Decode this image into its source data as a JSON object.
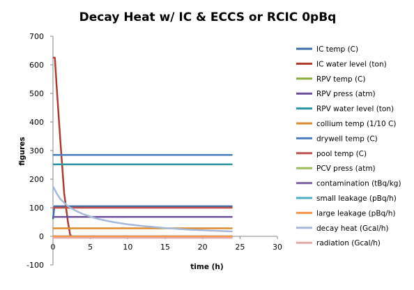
{
  "chart_data": {
    "type": "line",
    "title": "Decay Heat w/ IC & ECCS or RCIC   0pBq",
    "xlabel": "time (h)",
    "ylabel": "figures",
    "xlim": [
      0,
      30
    ],
    "ylim": [
      -100,
      700
    ],
    "xticks": [
      0,
      5,
      10,
      15,
      20,
      25,
      30
    ],
    "yticks": [
      -100,
      0,
      100,
      200,
      300,
      400,
      500,
      600,
      700
    ],
    "grid": false,
    "legend_position": "right",
    "series": [
      {
        "name": "IC temp (C)",
        "color": "#3a6ea5",
        "x": [
          0,
          0.2,
          24
        ],
        "y": [
          60,
          105,
          105
        ]
      },
      {
        "name": "IC water level (ton)",
        "color": "#b03a2e",
        "x": [
          0,
          0.25,
          0.5,
          1.0,
          1.5,
          2.0,
          2.3,
          2.5
        ],
        "y": [
          625,
          625,
          520,
          330,
          150,
          50,
          5,
          0
        ]
      },
      {
        "name": "RPV temp (C)",
        "color": "#8bac3a",
        "x": [
          0,
          24
        ],
        "y": [
          0,
          0
        ]
      },
      {
        "name": "RPV press (atm)",
        "color": "#6b4f99",
        "x": [
          0,
          24
        ],
        "y": [
          68,
          68
        ]
      },
      {
        "name": "RPV water level (ton)",
        "color": "#2a97a3",
        "x": [
          0,
          24
        ],
        "y": [
          252,
          252
        ]
      },
      {
        "name": "collium temp (1/10 C)",
        "color": "#e08a2e",
        "x": [
          0,
          24
        ],
        "y": [
          28,
          28
        ]
      },
      {
        "name": "drywell temp (C)",
        "color": "#4a7ebf",
        "x": [
          0,
          24
        ],
        "y": [
          285,
          285
        ]
      },
      {
        "name": "pool temp (C)",
        "color": "#c0504d",
        "x": [
          0,
          24
        ],
        "y": [
          100,
          100
        ]
      },
      {
        "name": "PCV press (atm)",
        "color": "#9bbb59",
        "x": [
          0,
          24
        ],
        "y": [
          -2,
          -2
        ]
      },
      {
        "name": "contamination (tBq/kg)",
        "color": "#7e61a8",
        "x": [
          0,
          24
        ],
        "y": [
          0,
          0
        ]
      },
      {
        "name": "small leakage (pBq/h)",
        "color": "#4bacc6",
        "x": [
          0,
          24
        ],
        "y": [
          0,
          0
        ]
      },
      {
        "name": "large leakage (pBq/h)",
        "color": "#f79646",
        "x": [
          0,
          24
        ],
        "y": [
          0,
          0
        ]
      },
      {
        "name": "decay heat (Gcal/h)",
        "color": "#a5b8d8",
        "x": [
          0,
          0.5,
          1,
          2,
          3,
          4,
          5,
          6,
          8,
          10,
          12,
          15,
          18,
          21,
          24
        ],
        "y": [
          175,
          150,
          130,
          105,
          90,
          78,
          69,
          61,
          50,
          42,
          36,
          29,
          24,
          20,
          17
        ]
      },
      {
        "name": "radiation (Gcal/h)",
        "color": "#e6a9a8",
        "x": [
          0,
          24
        ],
        "y": [
          -5,
          -5
        ]
      }
    ]
  }
}
